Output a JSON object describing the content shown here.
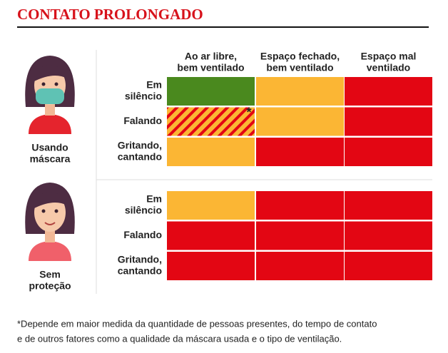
{
  "title": "CONTATO PROLONGADO",
  "columns": [
    {
      "lines": [
        "Ao ar libre,",
        "bem ventilado"
      ]
    },
    {
      "lines": [
        "Espaço fechado,",
        "bem ventilado"
      ]
    },
    {
      "lines": [
        "Espaço mal",
        "ventilado"
      ]
    }
  ],
  "groups": [
    {
      "label": [
        "Usando",
        "máscara"
      ],
      "mask": true,
      "shirt": "#e5242d",
      "rows": [
        {
          "lines": [
            "Em",
            "silêncio"
          ],
          "cells": [
            {
              "color": "#4a891e"
            },
            {
              "color": "#fbb634"
            },
            {
              "color": "#e30613"
            }
          ]
        },
        {
          "lines": [
            "Falando"
          ],
          "cells": [
            {
              "color": "#fbb634",
              "stripe": "#e30613",
              "note": "*"
            },
            {
              "color": "#fbb634"
            },
            {
              "color": "#e30613"
            }
          ]
        },
        {
          "lines": [
            "Gritando,",
            "cantando"
          ],
          "cells": [
            {
              "color": "#fbb634"
            },
            {
              "color": "#e30613"
            },
            {
              "color": "#e30613"
            }
          ]
        }
      ]
    },
    {
      "label": [
        "Sem",
        "proteção"
      ],
      "mask": false,
      "shirt": "#f0606a",
      "rows": [
        {
          "lines": [
            "Em",
            "silêncio"
          ],
          "cells": [
            {
              "color": "#fbb634"
            },
            {
              "color": "#e30613"
            },
            {
              "color": "#e30613"
            }
          ]
        },
        {
          "lines": [
            "Falando"
          ],
          "cells": [
            {
              "color": "#e30613"
            },
            {
              "color": "#e30613"
            },
            {
              "color": "#e30613"
            }
          ]
        },
        {
          "lines": [
            "Gritando,",
            "cantando"
          ],
          "cells": [
            {
              "color": "#e30613"
            },
            {
              "color": "#e30613"
            },
            {
              "color": "#e30613"
            }
          ]
        }
      ]
    }
  ],
  "footnote": [
    "*Depende em maior medida da quantidade de pessoas presentes, do tempo de contato",
    "e de outros fatores como a qualidade da máscara usada e o tipo de ventilação."
  ]
}
